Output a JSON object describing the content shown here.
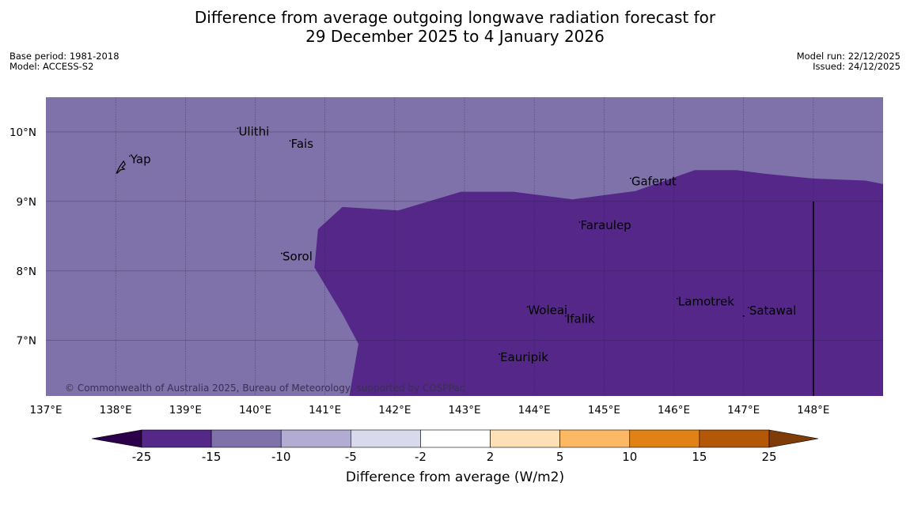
{
  "title": {
    "line1": "Difference from average outgoing longwave radiation forecast for",
    "line2": "29 December 2025 to 4 January 2026"
  },
  "meta_left": {
    "base_period": "Base period: 1981-2018",
    "model": "Model: ACCESS-S2"
  },
  "meta_right": {
    "model_run": "Model run: 22/12/2025",
    "issued": "Issued: 24/12/2025"
  },
  "map": {
    "lon_range": [
      137,
      149
    ],
    "lat_range": [
      6.2,
      10.5
    ],
    "x_ticks": [
      "137°E",
      "138°E",
      "139°E",
      "140°E",
      "141°E",
      "142°E",
      "143°E",
      "144°E",
      "145°E",
      "146°E",
      "147°E",
      "148°E"
    ],
    "y_ticks": [
      "10°N",
      "9°N",
      "8°N",
      "7°N"
    ],
    "places": [
      {
        "name": "Yap",
        "lon": 138.2,
        "lat": 9.55
      },
      {
        "name": "Ulithi",
        "lon": 139.75,
        "lat": 9.95
      },
      {
        "name": "Fais",
        "lon": 140.5,
        "lat": 9.77
      },
      {
        "name": "Gaferut",
        "lon": 145.38,
        "lat": 9.23
      },
      {
        "name": "Faraulep",
        "lon": 144.65,
        "lat": 8.6
      },
      {
        "name": "Sorol",
        "lon": 140.38,
        "lat": 8.15
      },
      {
        "name": "Lamotrek",
        "lon": 146.05,
        "lat": 7.5
      },
      {
        "name": "Woleai",
        "lon": 143.9,
        "lat": 7.38
      },
      {
        "name": "Ifalik",
        "lon": 144.45,
        "lat": 7.25
      },
      {
        "name": "Satawal",
        "lon": 147.07,
        "lat": 7.37
      },
      {
        "name": "Eauripik",
        "lon": 143.5,
        "lat": 6.7
      }
    ],
    "copyright": "© Commonwealth of Australia 2025, Bureau of Meteorology, supported by COSPPac",
    "colors": {
      "background_band": "#7f72aa",
      "anomaly_region": "#542789"
    }
  },
  "colorbar": {
    "tick_labels": [
      "-25",
      "-15",
      "-10",
      "-5",
      "-2",
      "2",
      "5",
      "10",
      "15",
      "25"
    ],
    "segment_colors": [
      "#542789",
      "#7f72aa",
      "#b2abd2",
      "#d8d9eb",
      "#ffffff",
      "#fee0b6",
      "#fdb863",
      "#e08214",
      "#b35806"
    ],
    "under_color": "#2d004b",
    "over_color": "#7f3b08",
    "label": "Difference from average (W/m2)"
  }
}
